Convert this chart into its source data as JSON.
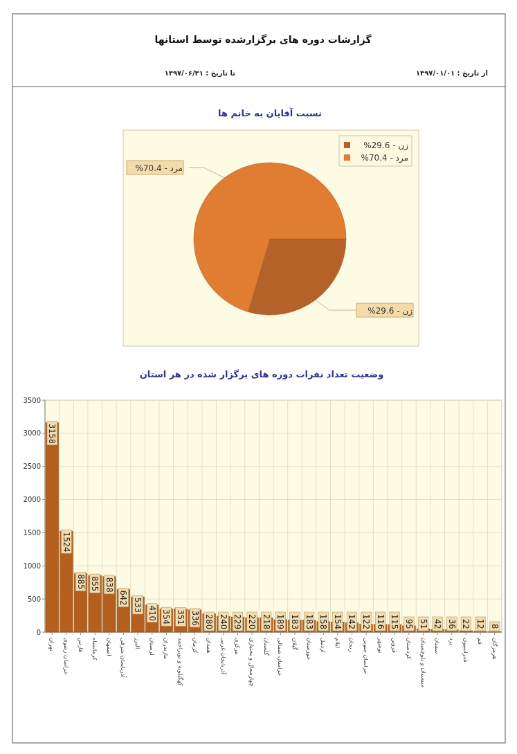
{
  "chart_data": [
    {
      "type": "other",
      "title": "گزارشات  دوره های برگزارشده توسط استانها",
      "annotations": [
        "از تاریخ : ۱۳۹۷/۰۱/۰۱",
        "تا تاریخ : ۱۳۹۷/۰۶/۳۱"
      ]
    },
    {
      "type": "pie",
      "title": "نسبت آقایان به خانم ها",
      "categories": [
        "زن",
        "مرد"
      ],
      "values": [
        29.6,
        70.4
      ],
      "colors": [
        "#b5612a",
        "#e07d33"
      ],
      "value_labels": [
        "29.6%",
        "70.4%"
      ],
      "legend": "top right"
    },
    {
      "type": "bar",
      "title": "وضعیت تعداد نفرات دوره های برگزار شده در هر استان",
      "categories": [
        "تهران",
        "خراسان رضوی",
        "فارس",
        "کرمانشاه",
        "اصفهان",
        "آذربایجان شرقی",
        "البرز",
        "لرستان",
        "مازندران",
        "کهگیلویه و بویراحمد",
        "کرمان",
        "همدان",
        "آذربایجان غربی",
        "مرکزی",
        "چهارمحال و بختیاری",
        "گلستان",
        "خراسان شمالی",
        "گیلان",
        "خوزستان",
        "اردبیل",
        "ایلام",
        "زنجان",
        "خراسان جنوبی",
        "بوشهر",
        "قزوین",
        "کردستان",
        "سیستان و بلوچستان",
        "سمنان",
        "یزد",
        "فدراسیون",
        "قم",
        "هرمزگان"
      ],
      "values": [
        3158,
        1524,
        885,
        855,
        838,
        642,
        533,
        410,
        354,
        351,
        336,
        280,
        240,
        229,
        220,
        218,
        189,
        183,
        183,
        158,
        154,
        142,
        122,
        116,
        115,
        95,
        51,
        42,
        36,
        22,
        12,
        8
      ],
      "color": "#b45f1e",
      "ylim": [
        0,
        3500
      ],
      "yticks": [
        0,
        500,
        1000,
        1500,
        2000,
        2500,
        3000,
        3500
      ],
      "grid": true,
      "data_labels": true
    }
  ]
}
